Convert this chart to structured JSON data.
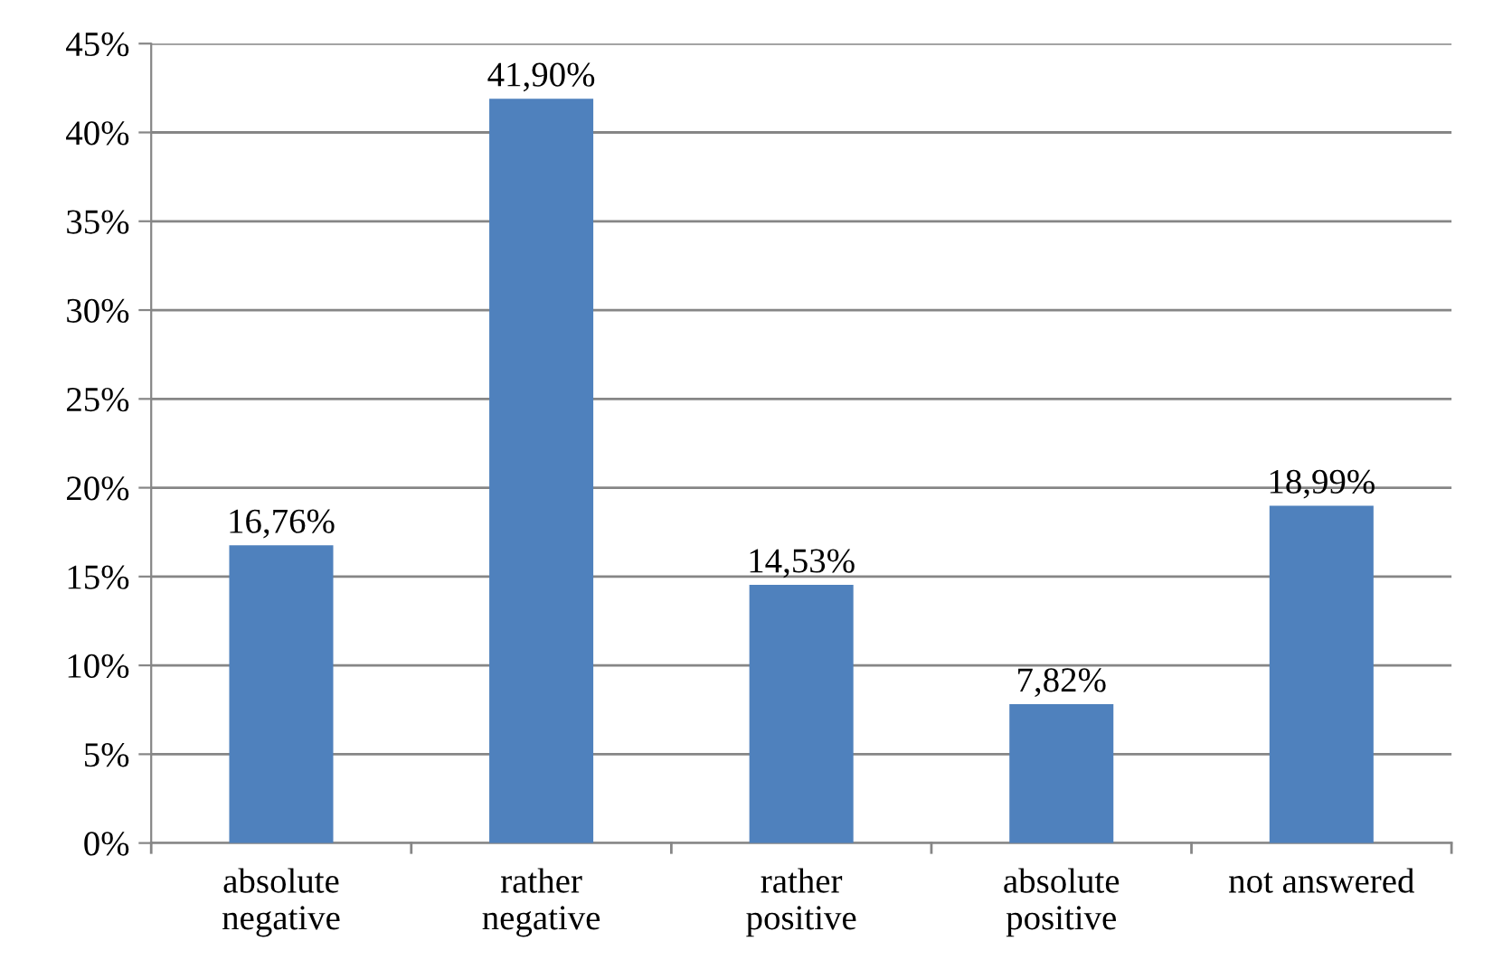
{
  "chart_data": {
    "type": "bar",
    "categories": [
      "absolute\nnegative",
      "rather\nnegative",
      "rather\npositive",
      "absolute\npositive",
      "not answered"
    ],
    "series": [
      {
        "color": "#4f81bd",
        "values": [
          16.76,
          41.9,
          14.53,
          7.82,
          18.99
        ],
        "value_labels": [
          "16,76%",
          "41,90%",
          "14,53%",
          "7,82%",
          "18,99%"
        ]
      }
    ],
    "ylim": [
      0,
      45
    ],
    "yticks": [
      {
        "value": 0,
        "label": "0%"
      },
      {
        "value": 5,
        "label": "5%"
      },
      {
        "value": 10,
        "label": "10%"
      },
      {
        "value": 15,
        "label": "15%"
      },
      {
        "value": 20,
        "label": "20%"
      },
      {
        "value": 25,
        "label": "25%"
      },
      {
        "value": 30,
        "label": "30%"
      },
      {
        "value": 35,
        "label": "35%"
      },
      {
        "value": 40,
        "label": "40%"
      },
      {
        "value": 45,
        "label": "45%"
      }
    ],
    "grid": "y"
  }
}
